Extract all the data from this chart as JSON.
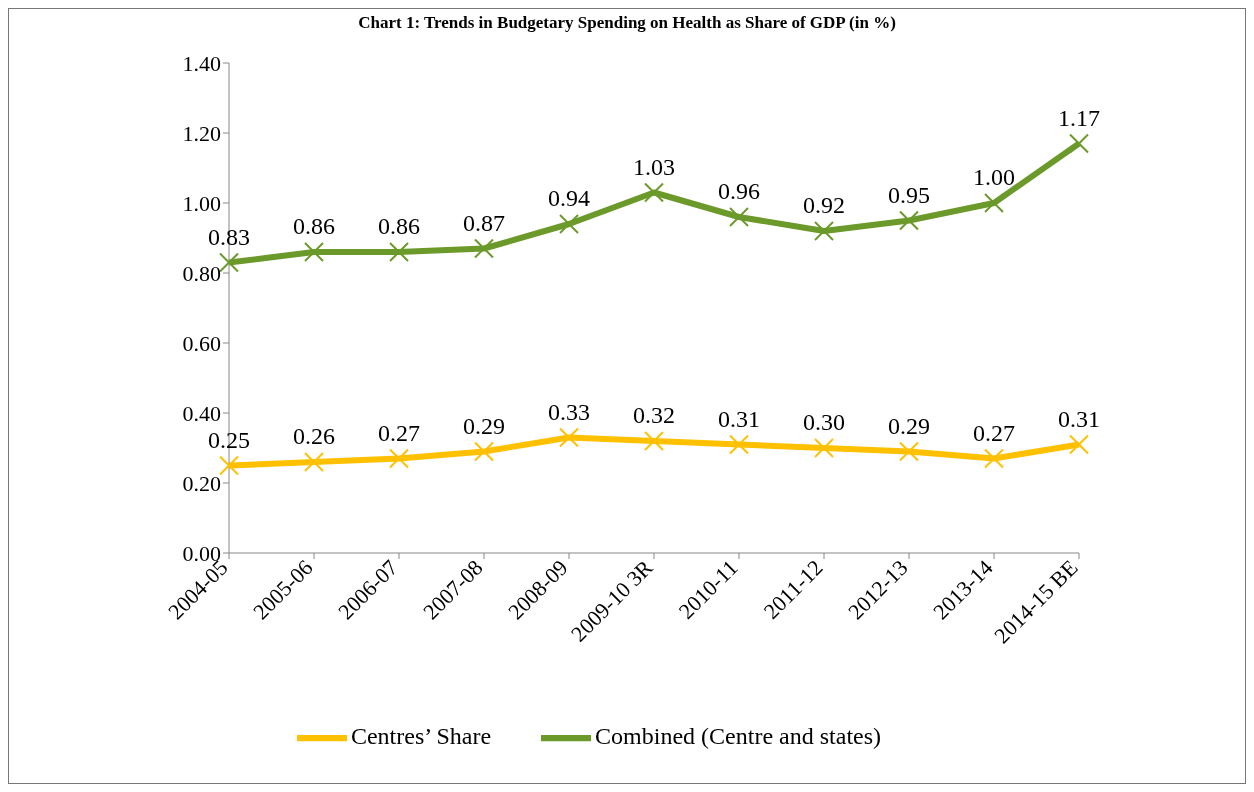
{
  "chart_data": {
    "type": "line",
    "title": "Chart 1: Trends in Budgetary Spending on Health as Share of GDP (in %)",
    "categories": [
      "2004-05",
      "2005-06",
      "2006-07",
      "2007-08",
      "2008-09",
      "2009-10 3R",
      "2010-11",
      "2011-12",
      "2012-13",
      "2013-14",
      "2014-15 BE"
    ],
    "series": [
      {
        "name": "Centres’ Share",
        "color": "#ffc000",
        "marker": "cross",
        "values": [
          0.25,
          0.26,
          0.27,
          0.29,
          0.33,
          0.32,
          0.31,
          0.3,
          0.29,
          0.27,
          0.31
        ],
        "value_labels": [
          "0.25",
          "0.26",
          "0.27",
          "0.29",
          "0.33",
          "0.32",
          "0.31",
          "0.30",
          "0.29",
          "0.27",
          "0.31"
        ]
      },
      {
        "name": "Combined (Centre and states)",
        "color": "#6b9a2a",
        "marker": "cross",
        "values": [
          0.83,
          0.86,
          0.86,
          0.87,
          0.94,
          1.03,
          0.96,
          0.92,
          0.95,
          1.0,
          1.17
        ],
        "value_labels": [
          "0.83",
          "0.86",
          "0.86",
          "0.87",
          "0.94",
          "1.03",
          "0.96",
          "0.92",
          "0.95",
          "1.00",
          "1.17"
        ]
      }
    ],
    "ylim": [
      0,
      1.4
    ],
    "yticks": [
      {
        "value": 0,
        "label": "0.00"
      },
      {
        "value": 0.2,
        "label": "0.20"
      },
      {
        "value": 0.4,
        "label": "0.40"
      },
      {
        "value": 0.6,
        "label": "0.60"
      },
      {
        "value": 0.8,
        "label": "0.80"
      },
      {
        "value": 1.0,
        "label": "1.00"
      },
      {
        "value": 1.2,
        "label": "1.20"
      },
      {
        "value": 1.4,
        "label": "1.40"
      }
    ],
    "legend": "bottom"
  }
}
